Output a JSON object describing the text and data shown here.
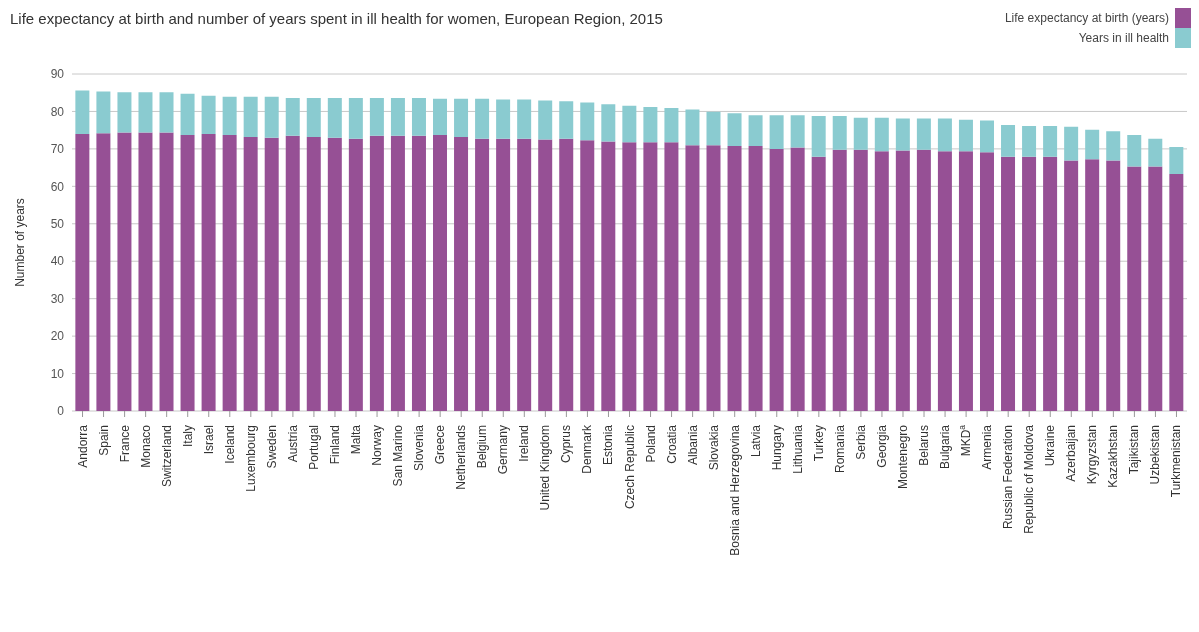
{
  "chart_data": {
    "type": "bar",
    "title": "Life expectancy at birth and number of years spent in ill health for women, European Region, 2015",
    "ylabel": "Number of years",
    "categories": [
      "Andorra",
      "Spain",
      "France",
      "Monaco",
      "Switzerland",
      "Italy",
      "Israel",
      "Iceland",
      "Luxembourg",
      "Sweden",
      "Austria",
      "Portugal",
      "Finland",
      "Malta",
      "Norway",
      "San Marino",
      "Slovenia",
      "Greece",
      "Netherlands",
      "Belgium",
      "Germany",
      "Ireland",
      "United Kingdom",
      "Cyprus",
      "Denmark",
      "Estonia",
      "Czech Republic",
      "Poland",
      "Croatia",
      "Albania",
      "Slovakia",
      "Bosnia and Herzegovina",
      "Latvia",
      "Hungary",
      "Lithuania",
      "Turkey",
      "Romania",
      "Serbia",
      "Georgia",
      "Montenegro",
      "Belarus",
      "Bulgaria",
      "MKD$^{a}$",
      "Armenia",
      "Russian Federation",
      "Republic of Moldova",
      "Ukraine",
      "Azerbaijan",
      "Kyrgyzstan",
      "Kazakhstan",
      "Tajikistan",
      "Uzbekistan",
      "Turkmenistan"
    ],
    "series": [
      {
        "name": "Life expectancy at birth (years)",
        "color": "#965095",
        "values": [
          74.0,
          74.2,
          74.4,
          74.4,
          74.4,
          73.7,
          74.0,
          73.7,
          73.2,
          73.0,
          73.5,
          73.2,
          73.0,
          72.7,
          73.5,
          73.5,
          73.5,
          73.7,
          73.2,
          72.7,
          72.7,
          72.7,
          72.5,
          72.7,
          72.3,
          72.0,
          71.8,
          71.8,
          71.8,
          71.0,
          71.0,
          70.8,
          70.8,
          70.0,
          70.4,
          67.9,
          69.8,
          69.8,
          69.4,
          69.6,
          69.8,
          69.4,
          69.4,
          69.1,
          67.9,
          67.9,
          67.9,
          66.9,
          67.2,
          66.9,
          65.3,
          65.3,
          63.3
        ]
      },
      {
        "name": "Years in ill health",
        "color": "#8acbd0",
        "values": [
          11.6,
          11.1,
          10.7,
          10.7,
          10.7,
          11.0,
          10.2,
          10.2,
          10.7,
          10.9,
          10.1,
          10.4,
          10.6,
          10.9,
          10.1,
          10.1,
          10.1,
          9.7,
          10.2,
          10.7,
          10.5,
          10.5,
          10.4,
          10.0,
          10.1,
          9.9,
          9.7,
          9.4,
          9.1,
          9.5,
          8.9,
          8.7,
          8.2,
          9.0,
          8.6,
          10.9,
          9.0,
          8.5,
          8.9,
          8.5,
          8.3,
          8.7,
          8.4,
          8.5,
          8.5,
          8.2,
          8.2,
          9.0,
          7.9,
          7.8,
          8.4,
          7.4,
          7.2
        ]
      }
    ],
    "stacked": true,
    "ylim": [
      0,
      90
    ],
    "yticks": [
      0,
      10,
      20,
      30,
      40,
      50,
      60,
      70,
      80,
      90
    ],
    "grid": "y",
    "legend": "top right"
  }
}
